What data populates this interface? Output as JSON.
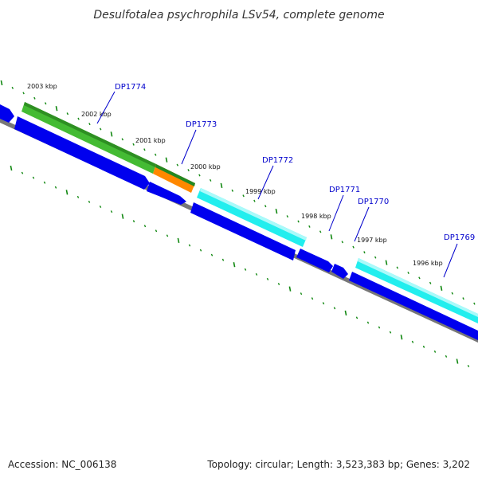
{
  "title": "Desulfotalea psychrophila LSv54, complete genome",
  "accession": "Accession: NC_006138",
  "summary": "Topology: circular; Length: 3,523,383 bp; Genes: 3,202",
  "ruler": [
    "2003 kbp",
    "2002 kbp",
    "2001 kbp",
    "2000 kbp",
    "1999 kbp",
    "1998 kbp",
    "1997 kbp",
    "1996 kbp"
  ],
  "genes": [
    "DP1774",
    "DP1773",
    "DP1772",
    "DP1771",
    "DP1770",
    "DP1769"
  ],
  "colors": {
    "cds": "#0000ee",
    "green": "#44cc33",
    "orange": "#ff8800",
    "cyan": "#22eeee",
    "tick": "#118811",
    "backbone": "#777777",
    "label": "#0000cc"
  }
}
